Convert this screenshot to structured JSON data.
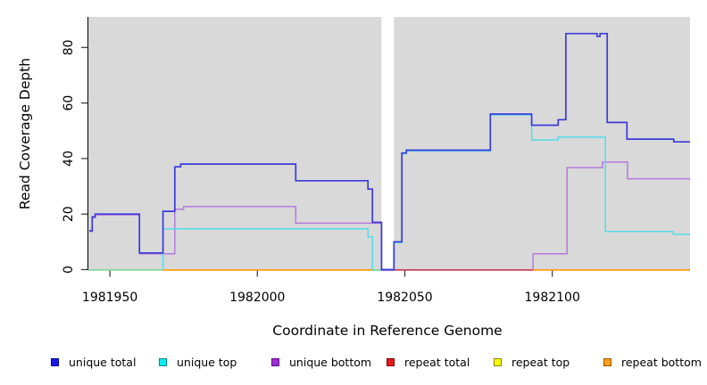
{
  "chart_data": {
    "type": "line",
    "subtype": "step-after-coverage-plot",
    "title": "",
    "xlabel": "Coordinate in Reference Genome",
    "ylabel": "Read Coverage Depth",
    "x_ticks": [
      1981950,
      1982000,
      1982050,
      1982100
    ],
    "y_ticks": [
      0,
      20,
      40,
      60,
      80
    ],
    "x_range": [
      1981942.7,
      1982146.7
    ],
    "y_range": [
      0,
      91
    ],
    "grid": "off",
    "plot_bg": "#D9D9D9",
    "gap_region": [
      1982042.1,
      1982046.3
    ],
    "series": [
      {
        "name": "unique total",
        "color": "#3B3BD8",
        "segments": [
          {
            "points": [
              [
                1981943,
                14
              ],
              [
                1981944,
                19
              ],
              [
                1981945,
                20
              ],
              [
                1981960,
                6
              ],
              [
                1981968,
                21
              ],
              [
                1981972,
                37
              ],
              [
                1981974,
                38
              ],
              [
                1982013,
                32
              ],
              [
                1982037.5,
                29
              ],
              [
                1982039,
                17
              ],
              [
                1982042.1,
                0
              ],
              [
                1982046.3,
                10
              ],
              [
                1982049,
                42
              ],
              [
                1982050.5,
                43
              ],
              [
                1982079,
                56
              ],
              [
                1982093,
                52
              ],
              [
                1982102,
                54
              ],
              [
                1982104.6,
                85
              ],
              [
                1982115.2,
                84
              ],
              [
                1982116.2,
                85
              ],
              [
                1982118.6,
                53
              ],
              [
                1982125.3,
                47
              ],
              [
                1982141.2,
                46
              ]
            ],
            "end": 1982146.7
          }
        ]
      },
      {
        "name": "unique top",
        "color": "#54DCE7",
        "segments": [
          {
            "points": [
              [
                1981968,
                0
              ],
              [
                1981968,
                15
              ],
              [
                1982037.5,
                12
              ],
              [
                1982039,
                0
              ]
            ],
            "end": 1982042.1
          },
          {
            "points": [
              [
                1982046.3,
                0
              ],
              [
                1982046.3,
                10
              ],
              [
                1982049,
                42
              ],
              [
                1982050.5,
                43
              ],
              [
                1982079,
                56
              ],
              [
                1982093,
                47
              ],
              [
                1982102,
                48
              ],
              [
                1982118,
                14
              ],
              [
                1982141,
                13
              ]
            ],
            "end": 1982146.7
          }
        ]
      },
      {
        "name": "unique bottom",
        "color": "#B678DE",
        "segments": [
          {
            "points": [
              [
                1981943,
                14
              ],
              [
                1981944,
                19
              ],
              [
                1981945,
                20
              ],
              [
                1981960,
                6
              ],
              [
                1981972,
                22
              ],
              [
                1981975,
                23
              ],
              [
                1982013,
                17
              ],
              [
                1982042.1,
                0
              ]
            ],
            "end": 1982046.3
          },
          {
            "points": [
              [
                1982093.5,
                0
              ],
              [
                1982093.5,
                6
              ],
              [
                1982105,
                37
              ],
              [
                1982117,
                39
              ],
              [
                1982125.5,
                33
              ]
            ],
            "end": 1982146.7
          }
        ]
      }
    ],
    "baseline_segments": [
      {
        "from": 1981942.7,
        "to": 1981968,
        "value": 0,
        "color": "#85D79E"
      },
      {
        "from": 1981968,
        "to": 1982039,
        "value": 0,
        "color": "#FF9E1B"
      },
      {
        "from": 1982039,
        "to": 1982042.1,
        "value": 0,
        "color": "#85D79E"
      },
      {
        "from": 1982046.3,
        "to": 1982093.5,
        "value": 0,
        "color": "#C8455F"
      },
      {
        "from": 1982093.5,
        "to": 1982146.7,
        "value": 0,
        "color": "#FF9E1B"
      }
    ],
    "legend": [
      {
        "label": "unique total",
        "fill": "#1717E6",
        "border": "#000090"
      },
      {
        "label": "unique top",
        "fill": "#00EEF0",
        "border": "#00888F"
      },
      {
        "label": "unique bottom",
        "fill": "#9B2FD6",
        "border": "#5E0F8E"
      },
      {
        "label": "repeat total",
        "fill": "#E31A1C",
        "border": "#7F0000"
      },
      {
        "label": "repeat top",
        "fill": "#F7F714",
        "border": "#8A8A00"
      },
      {
        "label": "repeat bottom",
        "fill": "#FF9E1B",
        "border": "#935A00"
      }
    ],
    "legend_position": "bottom"
  }
}
